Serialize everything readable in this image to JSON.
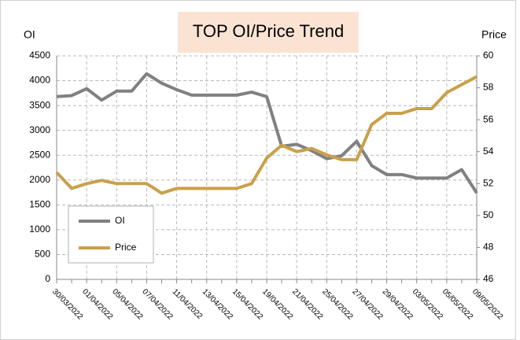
{
  "chart_data": {
    "type": "line",
    "title": "TOP OI/Price Trend",
    "y_label": "OI",
    "y2_label": "Price",
    "categories": [
      "30/03/2022",
      null,
      "01/04/2022",
      null,
      "05/04/2022",
      null,
      "07/04/2022",
      null,
      "11/04/2022",
      null,
      "13/04/2022",
      null,
      "15/04/2022",
      null,
      "19/04/2022",
      null,
      "21/04/2022",
      null,
      "25/04/2022",
      null,
      "27/04/2022",
      null,
      "29/04/2022",
      null,
      "03/05/2022",
      null,
      "05/05/2022",
      null,
      "09/05/2022"
    ],
    "series": [
      {
        "name": "OI",
        "color": "#808080",
        "values": [
          3680,
          3700,
          3840,
          3610,
          3790,
          3790,
          4140,
          3950,
          3820,
          3710,
          3710,
          3710,
          3710,
          3770,
          3680,
          2680,
          2720,
          2590,
          2430,
          2490,
          2780,
          2290,
          2110,
          2110,
          2040,
          2040,
          2040,
          2210,
          1740
        ]
      },
      {
        "name": "Price",
        "color": "#c9a04a",
        "axis": "y2",
        "values": [
          52.7,
          51.7,
          52.0,
          52.2,
          52.0,
          52.0,
          52.0,
          51.4,
          51.7,
          51.7,
          51.7,
          51.7,
          51.7,
          52.0,
          53.6,
          54.4,
          54.0,
          54.2,
          53.8,
          53.5,
          53.5,
          55.7,
          56.4,
          56.4,
          56.7,
          56.7,
          57.7,
          58.2,
          58.7
        ]
      }
    ],
    "ylim": [
      0,
      4500
    ],
    "yticks": [
      0,
      500,
      1000,
      1500,
      2000,
      2500,
      3000,
      3500,
      4000,
      4500
    ],
    "y2lim": [
      46,
      60
    ],
    "y2ticks": [
      46,
      48,
      50,
      52,
      54,
      56,
      58,
      60
    ],
    "grid": true,
    "legend": "lower left"
  }
}
